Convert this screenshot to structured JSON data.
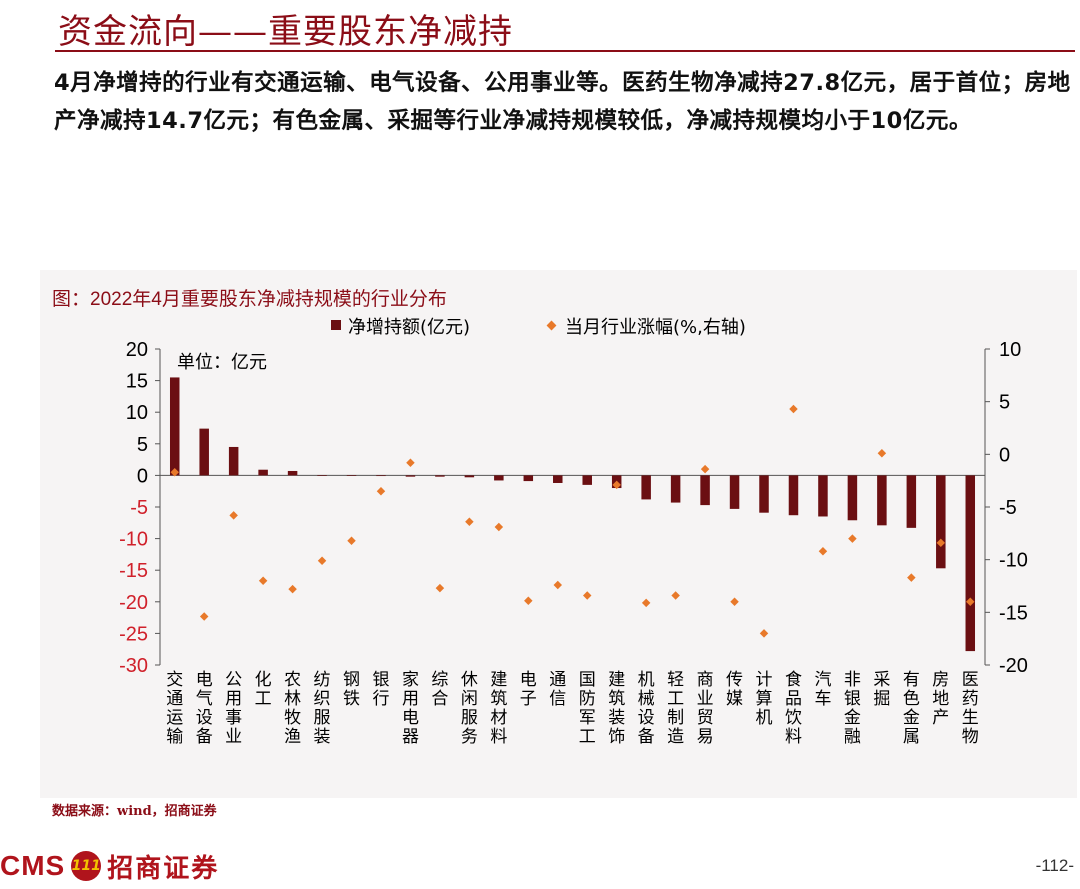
{
  "slide": {
    "title": "资金流向——重要股东净减持",
    "summary": "4月净增持的行业有交通运输、电气设备、公用事业等。医药生物净减持27.8亿元，居于首位；房地产净减持14.7亿元；有色金属、采掘等行业净减持规模较低，净减持规模均小于10亿元。",
    "figure_title": "图：2022年4月重要股东净减持规模的行业分布",
    "source": "数据来源：wind，招商证券",
    "page_number": "-112-"
  },
  "logo": {
    "latin": "CMS",
    "badge": "111",
    "chinese": "招商证券"
  },
  "colors": {
    "accent": "#8b0d17",
    "bar": "#6b0f12",
    "point": "#e8792a",
    "left_axis": "#d0202a"
  },
  "chart_data": {
    "type": "bar",
    "unit_note": "单位：亿元",
    "legend": {
      "bar_label": "净增持额(亿元)",
      "point_label": "当月行业涨幅(%,右轴)",
      "placement": "top"
    },
    "categories": [
      "交通运输",
      "电气设备",
      "公用事业",
      "化工",
      "农林牧渔",
      "纺织服装",
      "钢铁",
      "银行",
      "家用电器",
      "综合",
      "休闲服务",
      "建筑材料",
      "电子",
      "通信",
      "国防军工",
      "建筑装饰",
      "机械设备",
      "轻工制造",
      "商业贸易",
      "传媒",
      "计算机",
      "食品饮料",
      "汽车",
      "非银金融",
      "采掘",
      "有色金属",
      "房地产",
      "医药生物"
    ],
    "series": [
      {
        "name": "净增持额(亿元)",
        "type": "bar",
        "axis": "left",
        "values": [
          15.5,
          7.4,
          4.5,
          0.9,
          0.7,
          0.0,
          0.0,
          -0.1,
          -0.2,
          -0.2,
          -0.3,
          -0.8,
          -0.9,
          -1.2,
          -1.5,
          -2.0,
          -3.8,
          -4.3,
          -4.7,
          -5.3,
          -5.9,
          -6.3,
          -6.5,
          -7.1,
          -7.9,
          -8.3,
          -14.7,
          -27.8
        ]
      },
      {
        "name": "当月行业涨幅(%,右轴)",
        "type": "scatter",
        "axis": "right",
        "values": [
          -1.7,
          -15.4,
          -5.8,
          -12.0,
          -12.8,
          -10.1,
          -8.2,
          -3.5,
          -0.8,
          -12.7,
          -6.4,
          -6.9,
          -13.9,
          -12.4,
          -13.4,
          -2.9,
          -14.1,
          -13.4,
          -1.4,
          -14.0,
          -17.0,
          4.3,
          -9.2,
          -8.0,
          0.1,
          -11.7,
          -8.4,
          -14.0
        ]
      }
    ],
    "ylim_left": [
      -30,
      20
    ],
    "yticks_left": [
      "20",
      "15",
      "10",
      "5",
      "0",
      "-5",
      "-10",
      "-15",
      "-20",
      "-25",
      "-30"
    ],
    "ylim_right": [
      -20,
      10
    ],
    "yticks_right": [
      "10",
      "5",
      "0",
      "-5",
      "-10",
      "-15",
      "-20"
    ],
    "grid": false
  }
}
